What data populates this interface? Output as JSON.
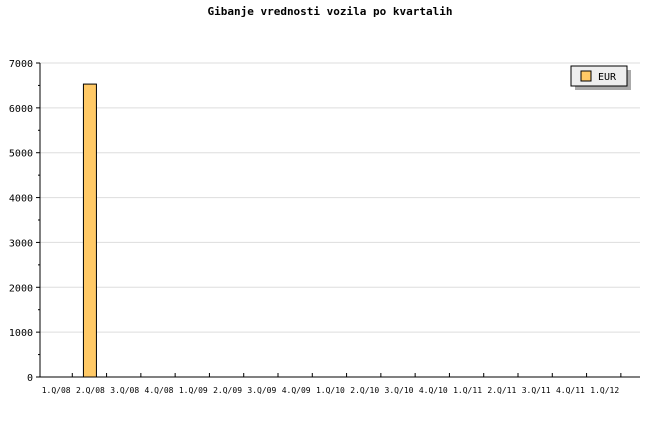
{
  "chart_data": {
    "type": "bar",
    "title": "Gibanje vrednosti vozila po kvartalih",
    "categories": [
      "1.Q/08",
      "2.Q/08",
      "3.Q/08",
      "4.Q/08",
      "1.Q/09",
      "2.Q/09",
      "3.Q/09",
      "4.Q/09",
      "1.Q/10",
      "2.Q/10",
      "3.Q/10",
      "4.Q/10",
      "1.Q/11",
      "2.Q/11",
      "3.Q/11",
      "4.Q/11",
      "1.Q/12",
      "1.Q/12"
    ],
    "series": [
      {
        "name": "EUR",
        "values": [
          0,
          6530,
          0,
          0,
          0,
          0,
          0,
          0,
          0,
          0,
          0,
          0,
          0,
          0,
          0,
          0,
          0,
          0
        ],
        "color": "#ffc966"
      }
    ],
    "ylim": [
      0,
      7000
    ],
    "yticks": [
      0,
      1000,
      2000,
      3000,
      4000,
      5000,
      6000,
      7000
    ],
    "grid": true,
    "legend": "top-right"
  }
}
